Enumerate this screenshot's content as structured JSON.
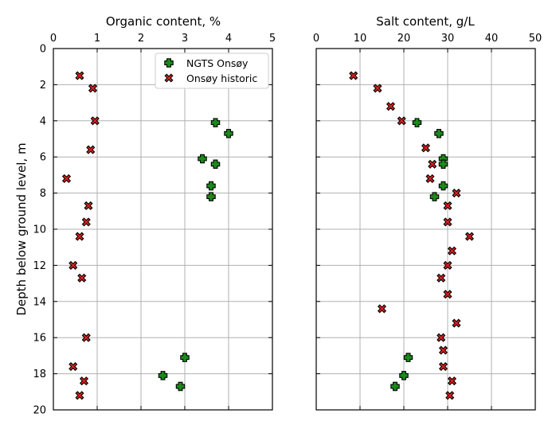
{
  "chart_data": [
    {
      "type": "scatter",
      "xlabel": "Organic content, %",
      "ylabel": "Depth below ground level, m",
      "xlim": [
        0,
        5
      ],
      "ylim": [
        20,
        0
      ],
      "xticks": [
        0,
        1,
        2,
        3,
        4,
        5
      ],
      "yticks": [
        0,
        2,
        4,
        6,
        8,
        10,
        12,
        14,
        16,
        18,
        20
      ],
      "grid": true,
      "x_axis_position": "top",
      "legend": "top-right",
      "series": [
        {
          "name": "NGTS Onsøy",
          "color": "#1a8a1a",
          "marker": "plus",
          "points": [
            {
              "x": 3.7,
              "y": 4.1
            },
            {
              "x": 4.0,
              "y": 4.7
            },
            {
              "x": 3.4,
              "y": 6.1
            },
            {
              "x": 3.7,
              "y": 6.4
            },
            {
              "x": 3.6,
              "y": 7.6
            },
            {
              "x": 3.6,
              "y": 8.2
            },
            {
              "x": 3.0,
              "y": 17.1
            },
            {
              "x": 2.5,
              "y": 18.1
            },
            {
              "x": 2.9,
              "y": 18.7
            }
          ]
        },
        {
          "name": "Onsøy historic",
          "color": "#e02020",
          "marker": "x",
          "points": [
            {
              "x": 0.6,
              "y": 1.5
            },
            {
              "x": 0.9,
              "y": 2.2
            },
            {
              "x": 0.95,
              "y": 4.0
            },
            {
              "x": 0.85,
              "y": 5.6
            },
            {
              "x": 0.3,
              "y": 7.2
            },
            {
              "x": 0.8,
              "y": 8.7
            },
            {
              "x": 0.75,
              "y": 9.6
            },
            {
              "x": 0.6,
              "y": 10.4
            },
            {
              "x": 0.45,
              "y": 12.0
            },
            {
              "x": 0.65,
              "y": 12.7
            },
            {
              "x": 0.75,
              "y": 16.0
            },
            {
              "x": 0.45,
              "y": 17.6
            },
            {
              "x": 0.7,
              "y": 18.4
            },
            {
              "x": 0.6,
              "y": 19.2
            }
          ]
        }
      ]
    },
    {
      "type": "scatter",
      "xlabel": "Salt content, g/L",
      "xlim": [
        0,
        50
      ],
      "ylim": [
        20,
        0
      ],
      "xticks": [
        0,
        10,
        20,
        30,
        40,
        50
      ],
      "yticks": [
        0,
        2,
        4,
        6,
        8,
        10,
        12,
        14,
        16,
        18,
        20
      ],
      "grid": true,
      "x_axis_position": "top",
      "series": [
        {
          "name": "NGTS Onsøy",
          "color": "#1a8a1a",
          "marker": "plus",
          "points": [
            {
              "x": 23,
              "y": 4.1
            },
            {
              "x": 28,
              "y": 4.7
            },
            {
              "x": 29,
              "y": 6.1
            },
            {
              "x": 29,
              "y": 6.4
            },
            {
              "x": 29,
              "y": 7.6
            },
            {
              "x": 27,
              "y": 8.2
            },
            {
              "x": 21,
              "y": 17.1
            },
            {
              "x": 20,
              "y": 18.1
            },
            {
              "x": 18,
              "y": 18.7
            }
          ]
        },
        {
          "name": "Onsøy historic",
          "color": "#e02020",
          "marker": "x",
          "points": [
            {
              "x": 8.5,
              "y": 1.5
            },
            {
              "x": 14,
              "y": 2.2
            },
            {
              "x": 17,
              "y": 3.2
            },
            {
              "x": 19.5,
              "y": 4.0
            },
            {
              "x": 25,
              "y": 5.5
            },
            {
              "x": 26.5,
              "y": 6.4
            },
            {
              "x": 26,
              "y": 7.2
            },
            {
              "x": 32,
              "y": 8.0
            },
            {
              "x": 30,
              "y": 8.7
            },
            {
              "x": 30,
              "y": 9.6
            },
            {
              "x": 35,
              "y": 10.4
            },
            {
              "x": 31,
              "y": 11.2
            },
            {
              "x": 30,
              "y": 12.0
            },
            {
              "x": 28.5,
              "y": 12.7
            },
            {
              "x": 30,
              "y": 13.6
            },
            {
              "x": 15,
              "y": 14.4
            },
            {
              "x": 32,
              "y": 15.2
            },
            {
              "x": 28.5,
              "y": 16.0
            },
            {
              "x": 29,
              "y": 16.7
            },
            {
              "x": 29,
              "y": 17.6
            },
            {
              "x": 31,
              "y": 18.4
            },
            {
              "x": 30.5,
              "y": 19.2
            }
          ]
        }
      ]
    }
  ]
}
